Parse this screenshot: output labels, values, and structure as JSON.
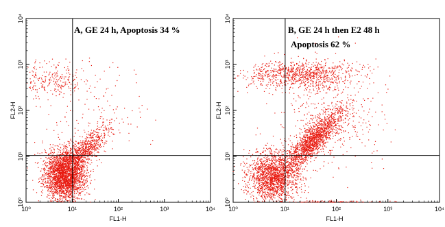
{
  "chart_data": [
    {
      "type": "scatter",
      "panel": "A",
      "annotation_lines": [
        "A, GE 24 h, Apoptosis  34 %"
      ],
      "xlabel": "FL1-H",
      "ylabel": "FL2-H",
      "xscale": "log",
      "yscale": "log",
      "xlim": [
        1,
        10000
      ],
      "ylim": [
        1,
        10000
      ],
      "x_tick_labels": [
        "10⁰",
        "10¹",
        "10²",
        "10³",
        "10⁴"
      ],
      "y_tick_labels": [
        "10⁰",
        "10¹",
        "10²",
        "10³",
        "10⁴"
      ],
      "quadrant_gate": {
        "x": 10.2,
        "y": 10.5
      },
      "point_color": "#e8190f",
      "apoptosis_percent": 34,
      "clusters": [
        {
          "cx": 7,
          "cy": 4,
          "sx_dex": 0.22,
          "sy_dex": 0.28,
          "n": 2600,
          "shape": "main-population"
        },
        {
          "cx": 20,
          "cy": 14,
          "sx_dex": 0.22,
          "sy_dex": 0.22,
          "n": 650,
          "shape": "diagonal-tail"
        },
        {
          "cx": 4,
          "cy": 450,
          "sx_dex": 0.45,
          "sy_dex": 0.18,
          "n": 260,
          "shape": "upper-band"
        },
        {
          "cx": 30,
          "cy": 60,
          "sx_dex": 0.6,
          "sy_dex": 0.5,
          "n": 140,
          "shape": "scatter"
        }
      ]
    },
    {
      "type": "scatter",
      "panel": "B",
      "annotation_lines": [
        "B, GE 24 h then E2 48 h",
        "Apoptosis  62 %"
      ],
      "xlabel": "FL1-H",
      "ylabel": "FL2-H",
      "xscale": "log",
      "yscale": "log",
      "xlim": [
        1,
        10000
      ],
      "ylim": [
        1,
        10000
      ],
      "x_tick_labels": [
        "10⁰",
        "10¹",
        "10²",
        "10³",
        "10⁴"
      ],
      "y_tick_labels": [
        "10⁰",
        "10¹",
        "10²",
        "10³",
        "10⁴"
      ],
      "quadrant_gate": {
        "x": 10.2,
        "y": 10.5
      },
      "point_color": "#e8190f",
      "apoptosis_percent": 62,
      "clusters": [
        {
          "cx": 6,
          "cy": 3.5,
          "sx_dex": 0.25,
          "sy_dex": 0.28,
          "n": 1700,
          "shape": "main-population"
        },
        {
          "cx": 35,
          "cy": 22,
          "sx_dex": 0.3,
          "sy_dex": 0.35,
          "n": 1500,
          "shape": "diagonal-tail"
        },
        {
          "cx": 20,
          "cy": 600,
          "sx_dex": 0.55,
          "sy_dex": 0.15,
          "n": 900,
          "shape": "upper-band"
        },
        {
          "cx": 80,
          "cy": 80,
          "sx_dex": 0.5,
          "sy_dex": 0.6,
          "n": 450,
          "shape": "scatter"
        },
        {
          "cx": 100,
          "cy": 1,
          "sx_dex": 0.5,
          "sy_dex": 0.02,
          "n": 160,
          "shape": "axis-line"
        }
      ]
    }
  ]
}
